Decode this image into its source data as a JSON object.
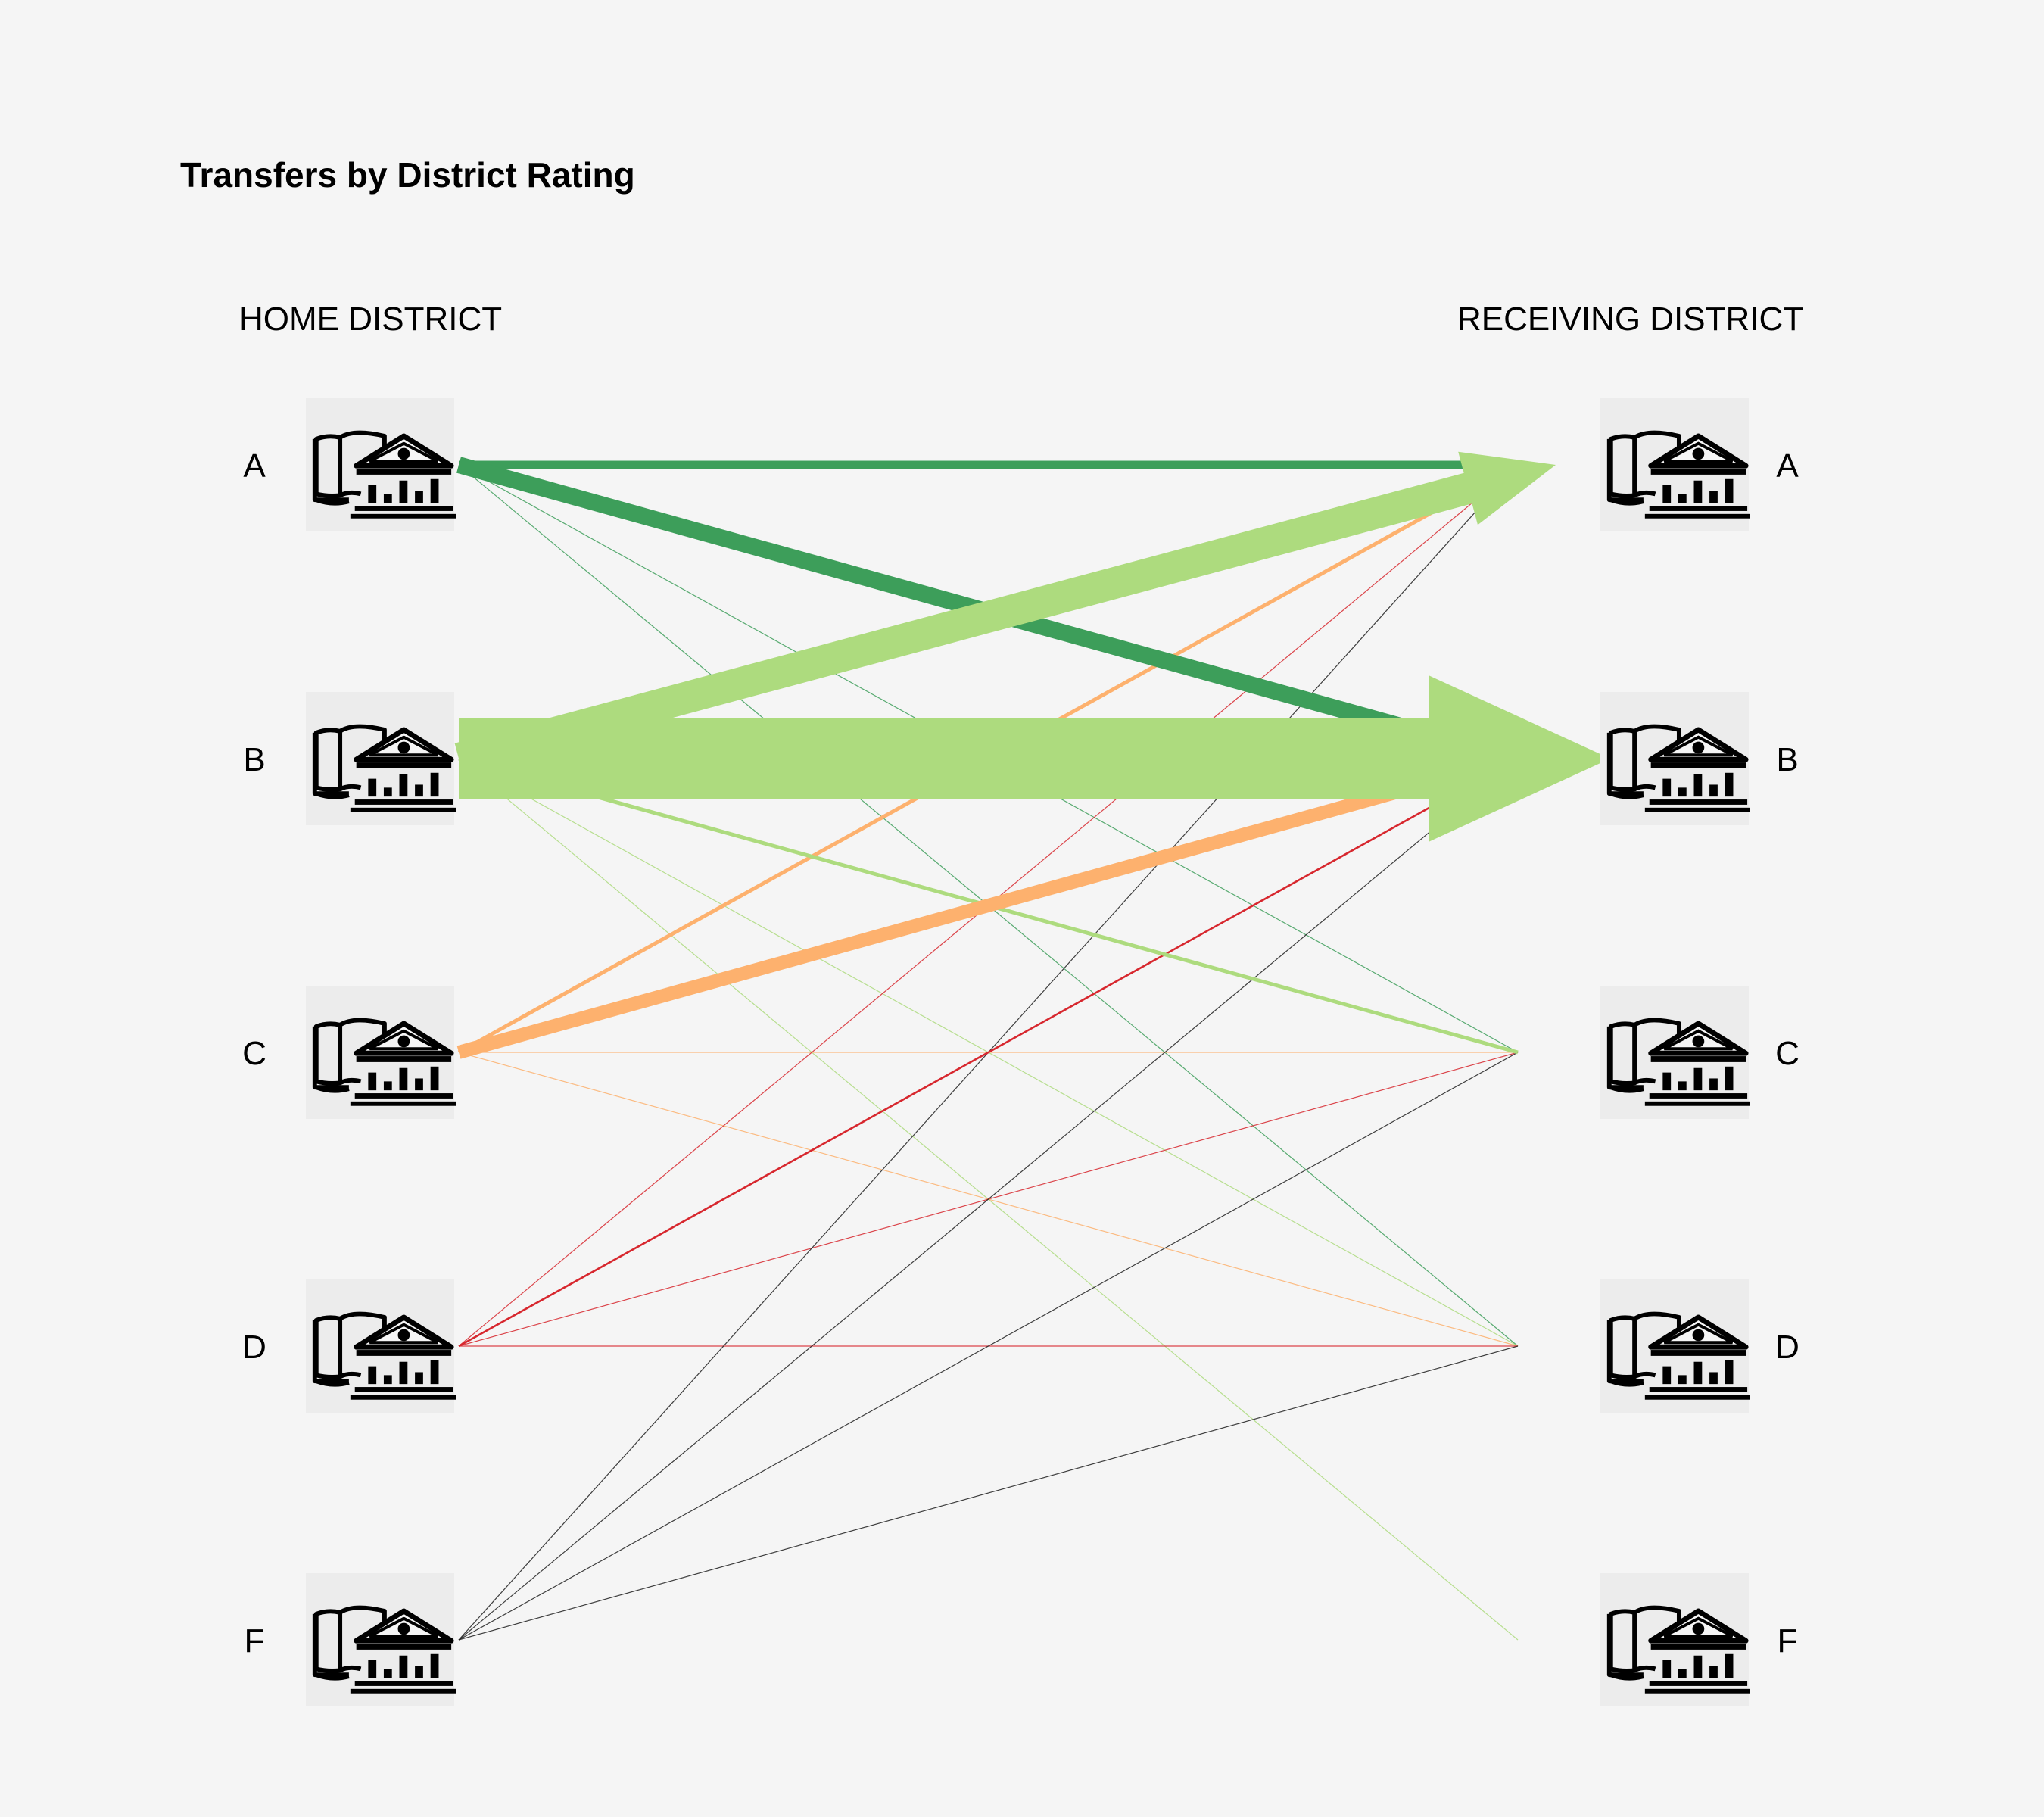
{
  "title": "Transfers by District Rating",
  "home_header": "HOME DISTRICT",
  "receiving_header": "RECEIVING DISTRICT",
  "icon": "school-building-icon",
  "ratings": [
    "A",
    "B",
    "C",
    "D",
    "F"
  ],
  "colors": {
    "A": "#3d9e5a",
    "B": "#addb7e",
    "C": "#fdb16e",
    "D": "#d7272e",
    "F": "#1f1f1f"
  },
  "chart_data": {
    "type": "flow",
    "sources": [
      "A",
      "B",
      "C",
      "D",
      "F"
    ],
    "targets": [
      "A",
      "B",
      "C",
      "D",
      "F"
    ],
    "flows": [
      {
        "from": "A",
        "to": "A",
        "value": 10
      },
      {
        "from": "A",
        "to": "B",
        "value": 26
      },
      {
        "from": "A",
        "to": "C",
        "value": 1
      },
      {
        "from": "A",
        "to": "D",
        "value": 1
      },
      {
        "from": "B",
        "to": "A",
        "value": 40
      },
      {
        "from": "B",
        "to": "B",
        "value": 110
      },
      {
        "from": "B",
        "to": "C",
        "value": 5
      },
      {
        "from": "B",
        "to": "D",
        "value": 1
      },
      {
        "from": "B",
        "to": "F",
        "value": 1
      },
      {
        "from": "C",
        "to": "A",
        "value": 4
      },
      {
        "from": "C",
        "to": "B",
        "value": 18
      },
      {
        "from": "C",
        "to": "C",
        "value": 1
      },
      {
        "from": "C",
        "to": "D",
        "value": 1
      },
      {
        "from": "D",
        "to": "A",
        "value": 1
      },
      {
        "from": "D",
        "to": "B",
        "value": 2
      },
      {
        "from": "D",
        "to": "C",
        "value": 1
      },
      {
        "from": "D",
        "to": "D",
        "value": 1
      },
      {
        "from": "F",
        "to": "A",
        "value": 1
      },
      {
        "from": "F",
        "to": "B",
        "value": 1
      },
      {
        "from": "F",
        "to": "C",
        "value": 1
      },
      {
        "from": "F",
        "to": "D",
        "value": 1
      }
    ]
  }
}
